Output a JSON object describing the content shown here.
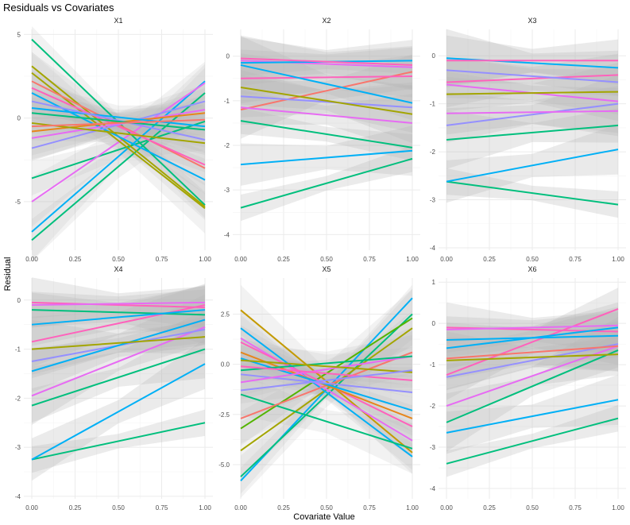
{
  "chart_data": {
    "type": "line",
    "title": "Residuals vs Covariates",
    "xlabel": "Covariate Value",
    "ylabel": "Residual",
    "facet_layout": "2x3",
    "grid": true,
    "legend": "none",
    "colors": [
      "#F8766D",
      "#C49A00",
      "#53B400",
      "#00C094",
      "#00B6EB",
      "#A58AFF",
      "#FB61D7",
      "#E76BF3",
      "#FF62BC",
      "#00A9FF"
    ],
    "band_color": "#b5b5b5",
    "x_ticks": [
      "0.00",
      "0.25",
      "0.50",
      "0.75",
      "1.00"
    ],
    "panels": [
      {
        "name": "X1",
        "ylim": [
          -7.9,
          5.3
        ],
        "y_ticks": [
          {
            "v": 5,
            "label": "5"
          },
          {
            "v": 0,
            "label": "0"
          },
          {
            "v": -5,
            "label": "-5"
          }
        ],
        "series": [
          {
            "color": "#00BF7D",
            "y0": 4.7,
            "y1": -5.2
          },
          {
            "color": "#00BF7D",
            "y0": -7.3,
            "y1": 1.5
          },
          {
            "color": "#00B0F6",
            "y0": -6.8,
            "y1": 2.2
          },
          {
            "color": "#00BF7D",
            "y0": -3.6,
            "y1": -0.2
          },
          {
            "color": "#E76BF3",
            "y0": -5.0,
            "y1": 2.1
          },
          {
            "color": "#A3A500",
            "y0": 3.1,
            "y1": -5.3
          },
          {
            "color": "#A3A500",
            "y0": 2.7,
            "y1": -5.4
          },
          {
            "color": "#F8766D",
            "y0": 2.2,
            "y1": -3.0
          },
          {
            "color": "#FF62BC",
            "y0": 1.8,
            "y1": -2.8
          },
          {
            "color": "#00B0F6",
            "y0": 1.5,
            "y1": -3.7
          },
          {
            "color": "#9590FF",
            "y0": -1.8,
            "y1": 1.0
          },
          {
            "color": "#E76BF3",
            "y0": -1.2,
            "y1": 0.5
          },
          {
            "color": "#E7861B",
            "y0": -0.8,
            "y1": 0.3
          },
          {
            "color": "#A3A500",
            "y0": -0.3,
            "y1": -1.5
          },
          {
            "color": "#00B0F6",
            "y0": 0.6,
            "y1": -0.5
          },
          {
            "color": "#9590FF",
            "y0": 1.0,
            "y1": -1.3
          },
          {
            "color": "#00BF7D",
            "y0": 0.3,
            "y1": -0.7
          },
          {
            "color": "#F8766D",
            "y0": -0.5,
            "y1": -0.1
          }
        ]
      },
      {
        "name": "X2",
        "ylim": [
          -4.35,
          0.6
        ],
        "y_ticks": [
          {
            "v": 0,
            "label": "0"
          },
          {
            "v": -1,
            "label": "-1"
          },
          {
            "v": -2,
            "label": "-2"
          },
          {
            "v": -3,
            "label": "-3"
          },
          {
            "v": -4,
            "label": "-4"
          }
        ],
        "series": [
          {
            "color": "#00BF7D",
            "y0": -3.4,
            "y1": -2.3
          },
          {
            "color": "#00B0F6",
            "y0": -2.43,
            "y1": -2.12
          },
          {
            "color": "#F8766D",
            "y0": -1.2,
            "y1": -0.35
          },
          {
            "color": "#E76BF3",
            "y0": -1.15,
            "y1": -1.5
          },
          {
            "color": "#FF62BC",
            "y0": -0.5,
            "y1": -0.45
          },
          {
            "color": "#00BF7D",
            "y0": -1.45,
            "y1": -2.05
          },
          {
            "color": "#9590FF",
            "y0": -0.9,
            "y1": -1.15
          },
          {
            "color": "#00B0F6",
            "y0": -0.2,
            "y1": -1.05
          },
          {
            "color": "#A3A500",
            "y0": -0.7,
            "y1": -1.3
          },
          {
            "color": "#E76BF3",
            "y0": -0.1,
            "y1": -0.25
          },
          {
            "color": "#00B0F6",
            "y0": -0.15,
            "y1": -0.1
          },
          {
            "color": "#FF62BC",
            "y0": -0.05,
            "y1": -0.2
          }
        ]
      },
      {
        "name": "X3",
        "ylim": [
          -4.05,
          0.55
        ],
        "y_ticks": [
          {
            "v": 0,
            "label": "0"
          },
          {
            "v": -1,
            "label": "-1"
          },
          {
            "v": -2,
            "label": "-2"
          },
          {
            "v": -3,
            "label": "-3"
          },
          {
            "v": -4,
            "label": "-4"
          }
        ],
        "series": [
          {
            "color": "#00BF7D",
            "y0": -2.62,
            "y1": -3.1
          },
          {
            "color": "#00B0F6",
            "y0": -2.62,
            "y1": -1.95
          },
          {
            "color": "#00BF7D",
            "y0": -1.75,
            "y1": -1.45
          },
          {
            "color": "#9590FF",
            "y0": -1.45,
            "y1": -1.0
          },
          {
            "color": "#FF62BC",
            "y0": -0.55,
            "y1": -0.4
          },
          {
            "color": "#E76BF3",
            "y0": -0.6,
            "y1": -0.95
          },
          {
            "color": "#E76BF3",
            "y0": -1.2,
            "y1": -1.15
          },
          {
            "color": "#00B0F6",
            "y0": -0.05,
            "y1": -0.25
          },
          {
            "color": "#A3A500",
            "y0": -0.8,
            "y1": -0.75
          },
          {
            "color": "#FF62BC",
            "y0": -0.1,
            "y1": -0.1
          },
          {
            "color": "#9590FF",
            "y0": -0.3,
            "y1": -0.55
          }
        ]
      },
      {
        "name": "X4",
        "ylim": [
          -4.05,
          0.45
        ],
        "y_ticks": [
          {
            "v": 0,
            "label": "0"
          },
          {
            "v": -1,
            "label": "-1"
          },
          {
            "v": -2,
            "label": "-2"
          },
          {
            "v": -3,
            "label": "-3"
          },
          {
            "v": -4,
            "label": "-4"
          }
        ],
        "series": [
          {
            "color": "#00BF7D",
            "y0": -3.25,
            "y1": -2.5
          },
          {
            "color": "#00B0F6",
            "y0": -3.25,
            "y1": -1.3
          },
          {
            "color": "#E76BF3",
            "y0": -1.95,
            "y1": -0.55
          },
          {
            "color": "#00BF7D",
            "y0": -2.15,
            "y1": -1.0
          },
          {
            "color": "#FF62BC",
            "y0": -0.85,
            "y1": -0.1
          },
          {
            "color": "#9590FF",
            "y0": -1.25,
            "y1": -0.6
          },
          {
            "color": "#00B0F6",
            "y0": -1.45,
            "y1": -0.4
          },
          {
            "color": "#A3A500",
            "y0": -1.0,
            "y1": -0.75
          },
          {
            "color": "#00BF7D",
            "y0": -0.2,
            "y1": -0.3
          },
          {
            "color": "#FF62BC",
            "y0": -0.05,
            "y1": -0.15
          },
          {
            "color": "#E76BF3",
            "y0": -0.1,
            "y1": -0.05
          },
          {
            "color": "#00B0F6",
            "y0": -0.5,
            "y1": -0.2
          }
        ]
      },
      {
        "name": "X5",
        "ylim": [
          -6.7,
          4.3
        ],
        "y_ticks": [
          {
            "v": 2.5,
            "label": "2.5"
          },
          {
            "v": 0,
            "label": "0.0"
          },
          {
            "v": -2.5,
            "label": "-2.5"
          },
          {
            "v": -5,
            "label": "-5.0"
          }
        ],
        "series": [
          {
            "color": "#00B0F6",
            "y0": -5.8,
            "y1": 3.3
          },
          {
            "color": "#00BF7D",
            "y0": -5.6,
            "y1": 2.5
          },
          {
            "color": "#A3A500",
            "y0": -4.3,
            "y1": 1.8
          },
          {
            "color": "#53B400",
            "y0": -3.2,
            "y1": 2.3
          },
          {
            "color": "#C49A00",
            "y0": 2.7,
            "y1": -4.4
          },
          {
            "color": "#00B0F6",
            "y0": 1.8,
            "y1": -4.6
          },
          {
            "color": "#00BF7D",
            "y0": -1.5,
            "y1": -4.2
          },
          {
            "color": "#E76BF3",
            "y0": 1.3,
            "y1": -3.8
          },
          {
            "color": "#FF62BC",
            "y0": 1.1,
            "y1": -3.1
          },
          {
            "color": "#F8766D",
            "y0": -2.7,
            "y1": 0.6
          },
          {
            "color": "#E7861B",
            "y0": 0.6,
            "y1": -2.7
          },
          {
            "color": "#00B0F6",
            "y0": 0.3,
            "y1": -2.3
          },
          {
            "color": "#9590FF",
            "y0": -0.5,
            "y1": -1.4
          },
          {
            "color": "#E76BF3",
            "y0": -0.9,
            "y1": 0.4
          },
          {
            "color": "#00BF7D",
            "y0": -0.3,
            "y1": 0.4
          },
          {
            "color": "#FF62BC",
            "y0": -0.1,
            "y1": -0.8
          },
          {
            "color": "#A3A500",
            "y0": 0.2,
            "y1": -0.4
          },
          {
            "color": "#9590FF",
            "y0": -1.3,
            "y1": -0.3
          }
        ]
      },
      {
        "name": "X6",
        "ylim": [
          -4.25,
          1.1
        ],
        "y_ticks": [
          {
            "v": 1,
            "label": "1"
          },
          {
            "v": 0,
            "label": "0"
          },
          {
            "v": -1,
            "label": "-1"
          },
          {
            "v": -2,
            "label": "-2"
          },
          {
            "v": -3,
            "label": "-3"
          },
          {
            "v": -4,
            "label": "-4"
          }
        ],
        "series": [
          {
            "color": "#00BF7D",
            "y0": -3.4,
            "y1": -2.3
          },
          {
            "color": "#00B0F6",
            "y0": -2.65,
            "y1": -1.85
          },
          {
            "color": "#00BF7D",
            "y0": -2.4,
            "y1": -0.65
          },
          {
            "color": "#E76BF3",
            "y0": -2.0,
            "y1": -0.55
          },
          {
            "color": "#FF62BC",
            "y0": -1.25,
            "y1": 0.35
          },
          {
            "color": "#9590FF",
            "y0": -1.3,
            "y1": -0.5
          },
          {
            "color": "#F8766D",
            "y0": -0.85,
            "y1": -0.55
          },
          {
            "color": "#A3A500",
            "y0": -0.9,
            "y1": -0.75
          },
          {
            "color": "#00B0F6",
            "y0": -0.4,
            "y1": -0.3
          },
          {
            "color": "#FF62BC",
            "y0": -0.1,
            "y1": -0.2
          },
          {
            "color": "#E76BF3",
            "y0": -0.15,
            "y1": -0.05
          },
          {
            "color": "#00B0F6",
            "y0": -0.6,
            "y1": -0.1
          }
        ]
      }
    ]
  }
}
